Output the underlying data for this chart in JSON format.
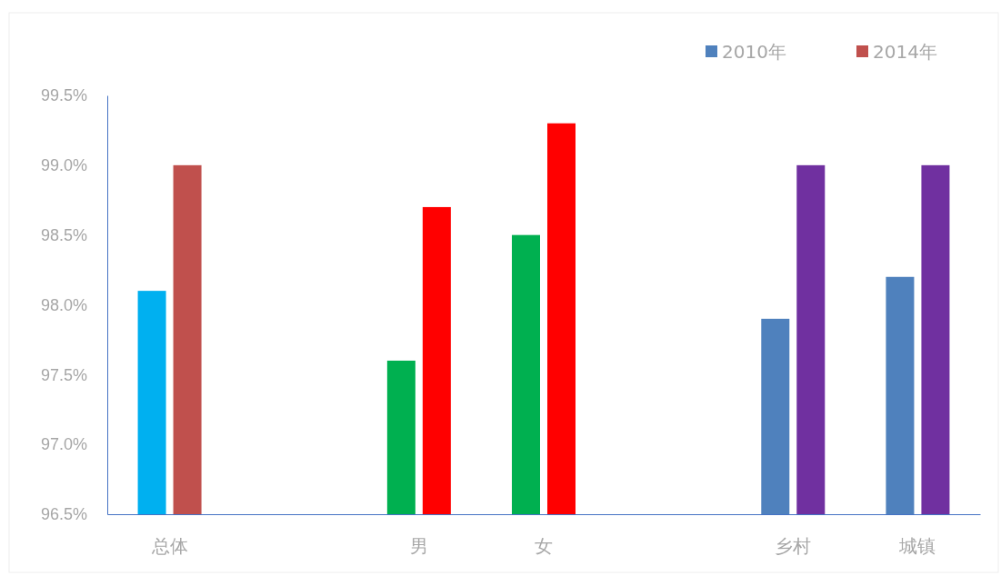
{
  "chart_data": {
    "type": "bar",
    "categories": [
      "总体",
      null,
      "男",
      "女",
      null,
      "乡村",
      "城镇"
    ],
    "series": [
      {
        "name": "2010年",
        "color": "#4f81bd",
        "colors": [
          "#00b0f0",
          null,
          "#00b050",
          "#00b050",
          null,
          "#4f81bd",
          "#4f81bd"
        ],
        "values": [
          98.1,
          null,
          97.6,
          98.5,
          null,
          97.9,
          98.2
        ]
      },
      {
        "name": "2014年",
        "color": "#c0504d",
        "colors": [
          "#c0504d",
          null,
          "#ff0000",
          "#ff0000",
          null,
          "#7030a0",
          "#7030a0"
        ],
        "values": [
          99.0,
          null,
          98.7,
          99.3,
          null,
          99.0,
          99.0
        ]
      }
    ],
    "ylim": [
      96.5,
      99.5
    ],
    "yticks": [
      {
        "value": 96.5,
        "label": "96.5%"
      },
      {
        "value": 97.0,
        "label": "97.0%"
      },
      {
        "value": 97.5,
        "label": "97.5%"
      },
      {
        "value": 98.0,
        "label": "98.0%"
      },
      {
        "value": 98.5,
        "label": "98.5%"
      },
      {
        "value": 99.0,
        "label": "99.0%"
      },
      {
        "value": 99.5,
        "label": "99.5%"
      }
    ],
    "grid": false,
    "legend": "top right"
  }
}
